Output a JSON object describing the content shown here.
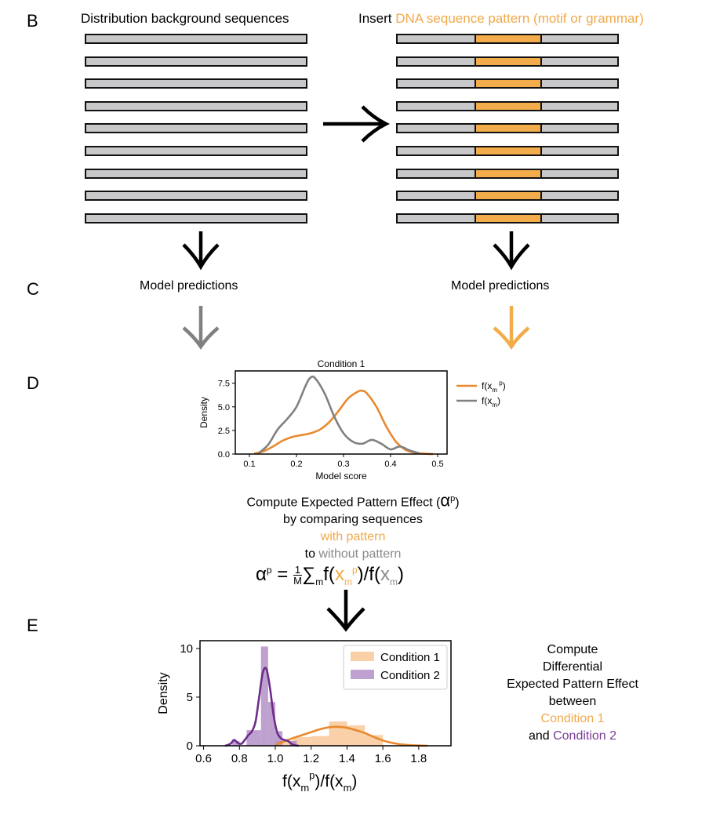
{
  "panels": {
    "b": "B",
    "c": "C",
    "d": "D",
    "e": "E"
  },
  "panel_b": {
    "left_header": "Distribution background sequences",
    "right_header_prefix": "Insert ",
    "right_header_highlight": "DNA sequence pattern (motif or grammar)",
    "sequence_count": 9,
    "colors": {
      "sequence": "#c8c8ca",
      "motif": "#f3ac4c"
    }
  },
  "panel_c": {
    "left_label": "Model predictions",
    "right_label": "Model predictions",
    "arrow_colors": {
      "left": "#808080",
      "right": "#f3ac4c"
    }
  },
  "panel_d": {
    "compute_line1": "Compute Expected Pattern Effect (",
    "compute_alpha": "α",
    "compute_sup": "p",
    "compute_close": ")",
    "line2": "by comparing sequences",
    "line3": "with pattern",
    "line4_prefix": "to ",
    "line4_highlight": "without pattern",
    "formula": {
      "alpha": "α",
      "sup_p": "p",
      "equals": " = ",
      "frac_num": "1",
      "frac_den": "M",
      "sum": "∑",
      "sum_sub": "m",
      "f1": "f(",
      "x": "x",
      "sub_m": "m",
      "sup_p2": "p",
      "mid": ")/f(",
      "x2": "x",
      "sub_m2": "m",
      "end": ")"
    }
  },
  "panel_e": {
    "right_text": [
      "Compute",
      "Differential",
      "Expected Pattern Effect",
      "between"
    ],
    "cond1": "Condition 1",
    "and_word": "and ",
    "cond2": "Condition 2"
  },
  "chart_data": [
    {
      "type": "line",
      "title": "Condition 1",
      "xlabel": "Model score",
      "ylabel": "Density",
      "xlim": [
        0.07,
        0.52
      ],
      "ylim": [
        0,
        8.8
      ],
      "xticks": [
        "0.1",
        "0.2",
        "0.3",
        "0.4",
        "0.5"
      ],
      "yticks": [
        "0.0",
        "2.5",
        "5.0",
        "7.5"
      ],
      "grid": false,
      "legend_position": "outside-right",
      "series": [
        {
          "name_main": "f(x",
          "name_sub": "m",
          "name_sup": "p",
          "name_end": ")",
          "color": "#e8892f",
          "x": [
            0.11,
            0.13,
            0.15,
            0.17,
            0.19,
            0.21,
            0.23,
            0.25,
            0.27,
            0.29,
            0.31,
            0.33,
            0.34,
            0.35,
            0.37,
            0.39,
            0.41,
            0.43,
            0.45,
            0.47,
            0.49
          ],
          "y": [
            0.05,
            0.3,
            0.8,
            1.4,
            1.8,
            2.0,
            2.2,
            2.6,
            3.4,
            4.6,
            5.9,
            6.6,
            6.7,
            6.4,
            5.0,
            3.0,
            1.4,
            0.5,
            0.15,
            0.05,
            0.0
          ]
        },
        {
          "name_main": "f(x",
          "name_sub": "m",
          "name_sup": "",
          "name_end": ")",
          "color": "#808080",
          "x": [
            0.12,
            0.14,
            0.16,
            0.18,
            0.2,
            0.22,
            0.23,
            0.24,
            0.26,
            0.28,
            0.3,
            0.32,
            0.34,
            0.36,
            0.38,
            0.4,
            0.42,
            0.44,
            0.46
          ],
          "y": [
            0.1,
            1.0,
            2.6,
            3.7,
            5.0,
            7.3,
            8.1,
            8.0,
            6.4,
            4.0,
            2.2,
            1.3,
            1.1,
            1.5,
            1.1,
            0.5,
            0.8,
            0.4,
            0.1
          ]
        }
      ]
    },
    {
      "type": "bar",
      "xlabel_main": "f(x",
      "xlabel_sub": "m",
      "xlabel_sup": "p",
      "xlabel_mid": ")/f(x",
      "xlabel_sub2": "m",
      "xlabel_end": ")",
      "ylabel": "Density",
      "xlim": [
        0.58,
        1.98
      ],
      "ylim": [
        0,
        10.8
      ],
      "xticks": [
        "0.6",
        "0.8",
        "1.0",
        "1.2",
        "1.4",
        "1.6",
        "1.8"
      ],
      "yticks": [
        "0",
        "5",
        "10"
      ],
      "legend_position": "top-right",
      "series": [
        {
          "name": "Condition 1",
          "color": "#f7c08a",
          "line_color": "#e8892f",
          "bins": [
            [
              1.0,
              1.1,
              0.5
            ],
            [
              1.1,
              1.2,
              0.9
            ],
            [
              1.2,
              1.3,
              1.0
            ],
            [
              1.3,
              1.4,
              2.5
            ],
            [
              1.4,
              1.5,
              2.1
            ],
            [
              1.5,
              1.6,
              1.1
            ]
          ],
          "kde_x": [
            1.0,
            1.05,
            1.1,
            1.15,
            1.2,
            1.25,
            1.3,
            1.35,
            1.4,
            1.45,
            1.5,
            1.55,
            1.6,
            1.65,
            1.7,
            1.75,
            1.8,
            1.85
          ],
          "kde_y": [
            0.1,
            0.45,
            0.8,
            1.1,
            1.4,
            1.7,
            1.9,
            1.95,
            1.85,
            1.6,
            1.3,
            0.9,
            0.55,
            0.3,
            0.15,
            0.07,
            0.03,
            0.0
          ]
        },
        {
          "name": "Condition 2",
          "color": "#a982bf",
          "line_color": "#6d2c8c",
          "bins": [
            [
              0.76,
              0.8,
              0.5
            ],
            [
              0.84,
              0.92,
              1.6
            ],
            [
              0.92,
              0.96,
              10.2
            ],
            [
              0.96,
              1.0,
              4.5
            ],
            [
              1.0,
              1.04,
              1.5
            ],
            [
              1.08,
              1.12,
              0.5
            ]
          ],
          "kde_x": [
            0.72,
            0.75,
            0.77,
            0.79,
            0.81,
            0.83,
            0.85,
            0.87,
            0.89,
            0.91,
            0.93,
            0.95,
            0.97,
            0.99,
            1.01,
            1.03,
            1.05,
            1.07,
            1.09,
            1.11,
            1.13
          ],
          "kde_y": [
            0.0,
            0.2,
            0.6,
            0.3,
            0.2,
            0.6,
            1.1,
            1.5,
            2.5,
            5.0,
            7.5,
            7.9,
            6.0,
            3.2,
            1.4,
            0.8,
            0.6,
            0.5,
            0.2,
            0.05,
            0.0
          ]
        }
      ]
    }
  ]
}
